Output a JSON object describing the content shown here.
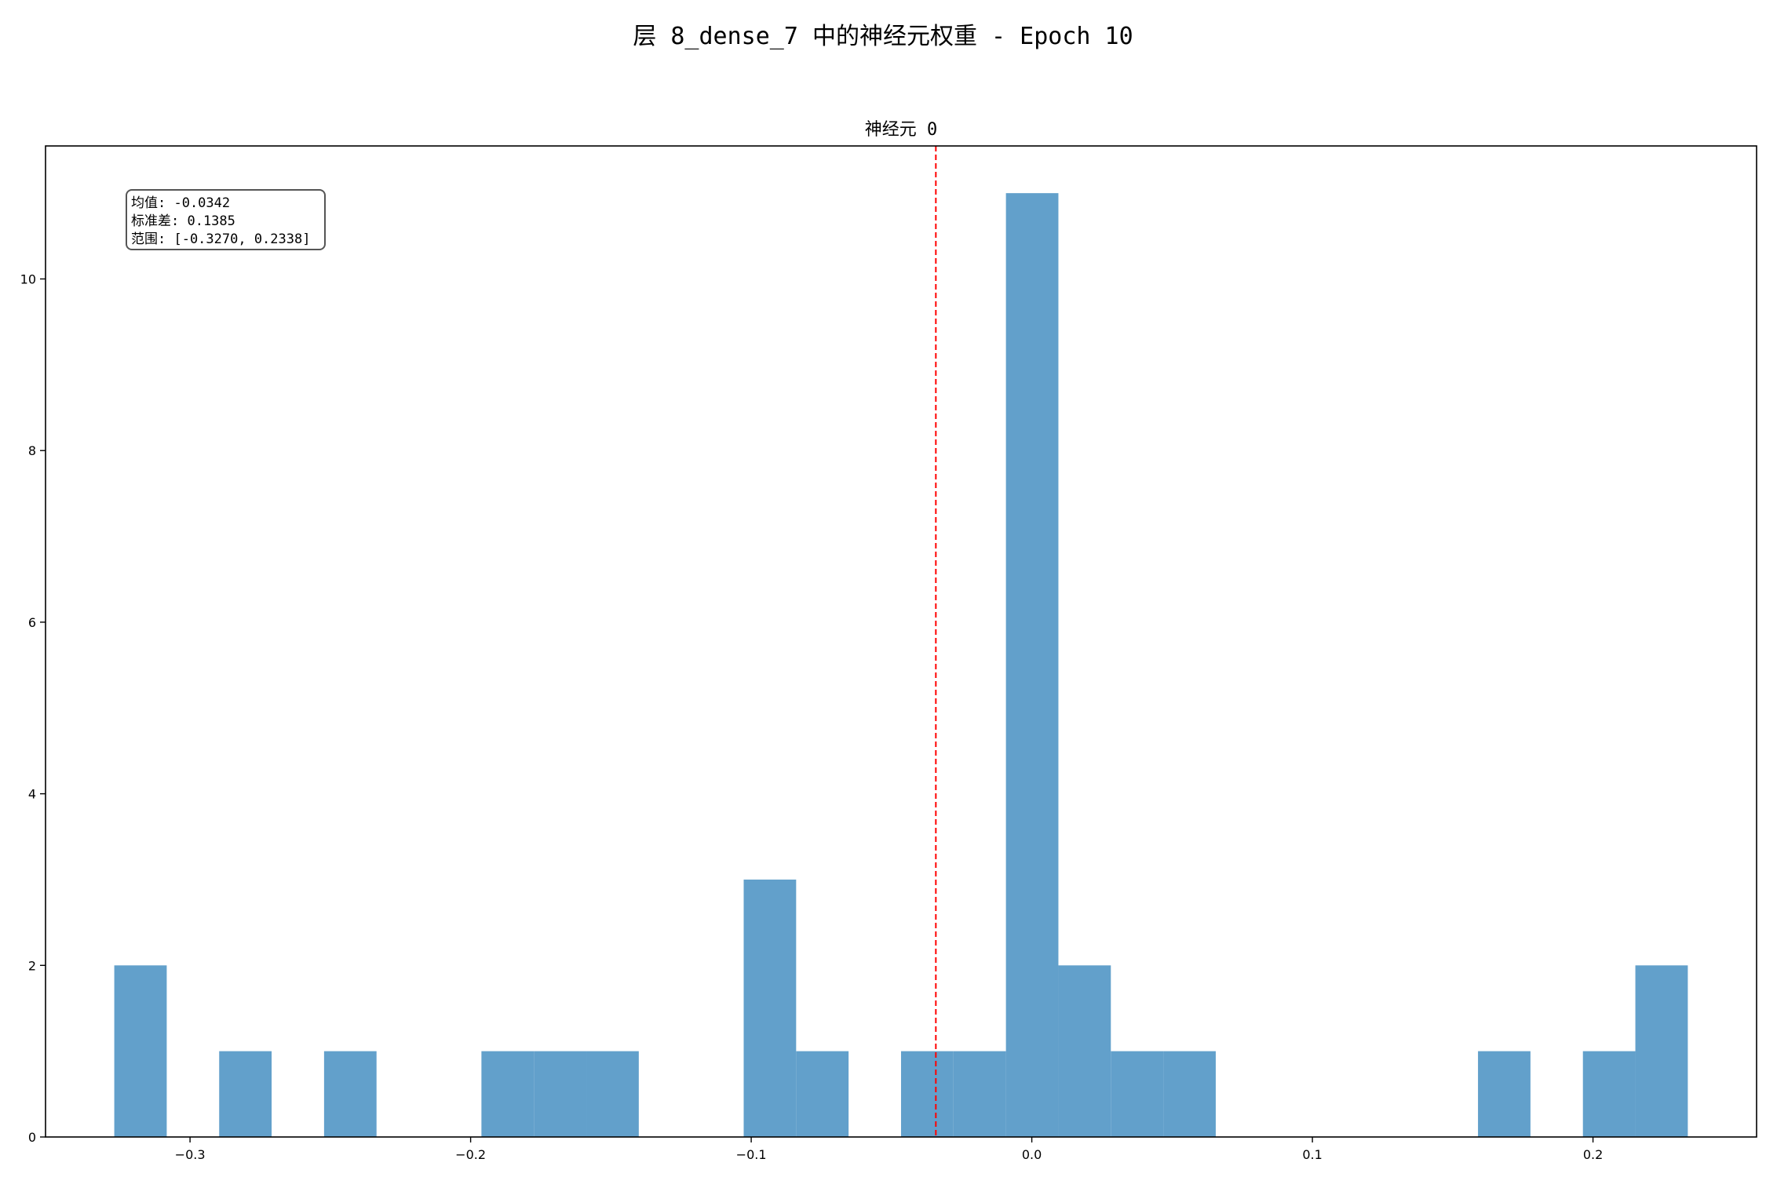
{
  "figure": {
    "suptitle": "层 8_dense_7 中的神经元权重 - Epoch 10"
  },
  "chart_data": {
    "type": "bar",
    "title": "神经元 0",
    "xlabel": "",
    "ylabel": "",
    "xlim": [
      -0.3515,
      0.2583
    ],
    "ylim": [
      0,
      11.55
    ],
    "grid": false,
    "bar_color": "#62a0cb",
    "mean_line": {
      "value": -0.0342,
      "color": "#ff0000",
      "style": "dashed"
    },
    "bins": {
      "start": -0.327,
      "width": 0.018693,
      "counts": [
        2,
        0,
        1,
        0,
        1,
        0,
        0,
        1,
        1,
        1,
        0,
        0,
        3,
        1,
        0,
        1,
        1,
        11,
        2,
        1,
        1,
        0,
        0,
        0,
        0,
        0,
        1,
        0,
        1,
        2
      ]
    },
    "x_ticks": [
      {
        "value": -0.3,
        "label": "−0.3"
      },
      {
        "value": -0.2,
        "label": "−0.2"
      },
      {
        "value": -0.1,
        "label": "−0.1"
      },
      {
        "value": 0.0,
        "label": "0.0"
      },
      {
        "value": 0.1,
        "label": "0.1"
      },
      {
        "value": 0.2,
        "label": "0.2"
      }
    ],
    "y_ticks": [
      {
        "value": 0,
        "label": "0"
      },
      {
        "value": 2,
        "label": "2"
      },
      {
        "value": 4,
        "label": "4"
      },
      {
        "value": 6,
        "label": "6"
      },
      {
        "value": 8,
        "label": "8"
      },
      {
        "value": 10,
        "label": "10"
      }
    ],
    "stats_box": {
      "lines": [
        "均值: -0.0342",
        "标准差: 0.1385",
        "范围: [-0.3270, 0.2338]"
      ]
    }
  }
}
